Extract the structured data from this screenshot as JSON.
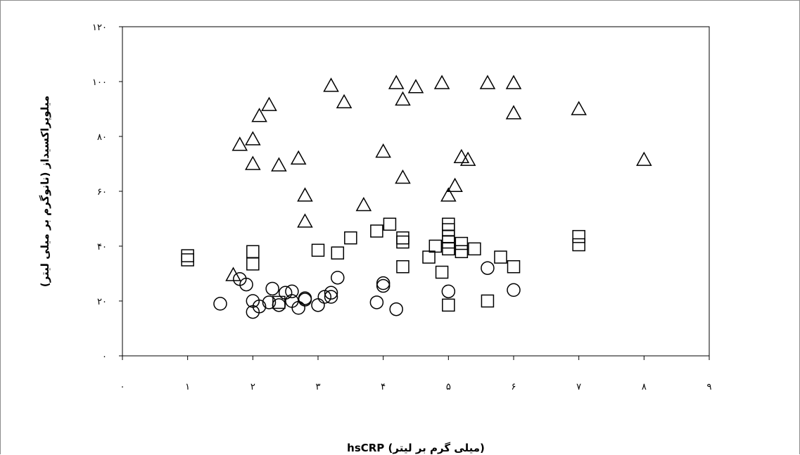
{
  "chart_data": {
    "type": "scatter",
    "title": "",
    "xlabel": "hsCRP (میلی گرم بر لیتر)",
    "ylabel": "میلوپراکسیداز (نانوگرم بر میلی لیتر)",
    "xlim": [
      0,
      9
    ],
    "ylim": [
      0,
      120
    ],
    "x_ticks": [
      0,
      1,
      2,
      3,
      4,
      5,
      6,
      7,
      8,
      9
    ],
    "y_ticks": [
      0,
      20,
      40,
      60,
      80,
      100,
      120
    ],
    "x_tick_labels": [
      "۰",
      "۱",
      "۲",
      "۳",
      "۴",
      "۵",
      "۶",
      "۷",
      "۸",
      "۹"
    ],
    "y_tick_labels": [
      "۰",
      "۲۰",
      "۴۰",
      "۶۰",
      "۸۰",
      "۱۰۰",
      "۱۲۰"
    ],
    "grid": false,
    "legend": "none",
    "series": [
      {
        "marker": "triangle",
        "points": [
          [
            1.7,
            29.5
          ],
          [
            1.8,
            77
          ],
          [
            2.0,
            79
          ],
          [
            2.0,
            70
          ],
          [
            2.1,
            87.5
          ],
          [
            2.25,
            91.5
          ],
          [
            2.4,
            69.5
          ],
          [
            2.7,
            72
          ],
          [
            2.8,
            58.5
          ],
          [
            2.8,
            49
          ],
          [
            3.2,
            98.5
          ],
          [
            3.4,
            92.5
          ],
          [
            3.7,
            55
          ],
          [
            4.0,
            74.5
          ],
          [
            4.2,
            99.5
          ],
          [
            4.3,
            93.5
          ],
          [
            4.3,
            65
          ],
          [
            4.5,
            98
          ],
          [
            4.9,
            99.5
          ],
          [
            5.0,
            58.5
          ],
          [
            5.1,
            62
          ],
          [
            5.2,
            72.5
          ],
          [
            5.3,
            71.5
          ],
          [
            5.6,
            99.5
          ],
          [
            6.0,
            99.5
          ],
          [
            6.0,
            88.5
          ],
          [
            7.0,
            90
          ],
          [
            8.0,
            71.5
          ]
        ]
      },
      {
        "marker": "square",
        "points": [
          [
            1.0,
            36.5
          ],
          [
            1.0,
            35
          ],
          [
            2.0,
            38
          ],
          [
            2.0,
            33.5
          ],
          [
            2.4,
            19.5
          ],
          [
            3.0,
            38.5
          ],
          [
            3.3,
            37.5
          ],
          [
            3.5,
            43
          ],
          [
            3.9,
            45.5
          ],
          [
            4.1,
            48
          ],
          [
            4.3,
            43
          ],
          [
            4.3,
            41.5
          ],
          [
            4.3,
            32.5
          ],
          [
            4.7,
            36
          ],
          [
            4.8,
            40
          ],
          [
            4.9,
            30.5
          ],
          [
            5.0,
            48
          ],
          [
            5.0,
            46
          ],
          [
            5.0,
            43.5
          ],
          [
            5.0,
            41.5
          ],
          [
            5.0,
            39
          ],
          [
            5.0,
            18.5
          ],
          [
            5.2,
            41
          ],
          [
            5.2,
            38
          ],
          [
            5.4,
            39
          ],
          [
            5.6,
            20
          ],
          [
            5.8,
            36
          ],
          [
            6.0,
            32.5
          ],
          [
            7.0,
            43.5
          ],
          [
            7.0,
            40.5
          ]
        ]
      },
      {
        "marker": "circle",
        "points": [
          [
            1.5,
            19
          ],
          [
            1.8,
            28
          ],
          [
            1.9,
            26
          ],
          [
            2.0,
            20
          ],
          [
            2.0,
            16
          ],
          [
            2.1,
            18
          ],
          [
            2.25,
            19.5
          ],
          [
            2.3,
            24.5
          ],
          [
            2.4,
            18.5
          ],
          [
            2.5,
            23
          ],
          [
            2.6,
            23.5
          ],
          [
            2.6,
            20
          ],
          [
            2.7,
            17.5
          ],
          [
            2.8,
            21
          ],
          [
            2.8,
            20.5
          ],
          [
            3.0,
            18.5
          ],
          [
            3.1,
            21.5
          ],
          [
            3.2,
            23
          ],
          [
            3.2,
            21.5
          ],
          [
            3.3,
            28.5
          ],
          [
            3.9,
            19.5
          ],
          [
            4.0,
            26.5
          ],
          [
            4.0,
            25.5
          ],
          [
            4.2,
            17
          ],
          [
            5.0,
            23.5
          ],
          [
            5.6,
            32
          ],
          [
            6.0,
            24
          ]
        ]
      }
    ]
  }
}
